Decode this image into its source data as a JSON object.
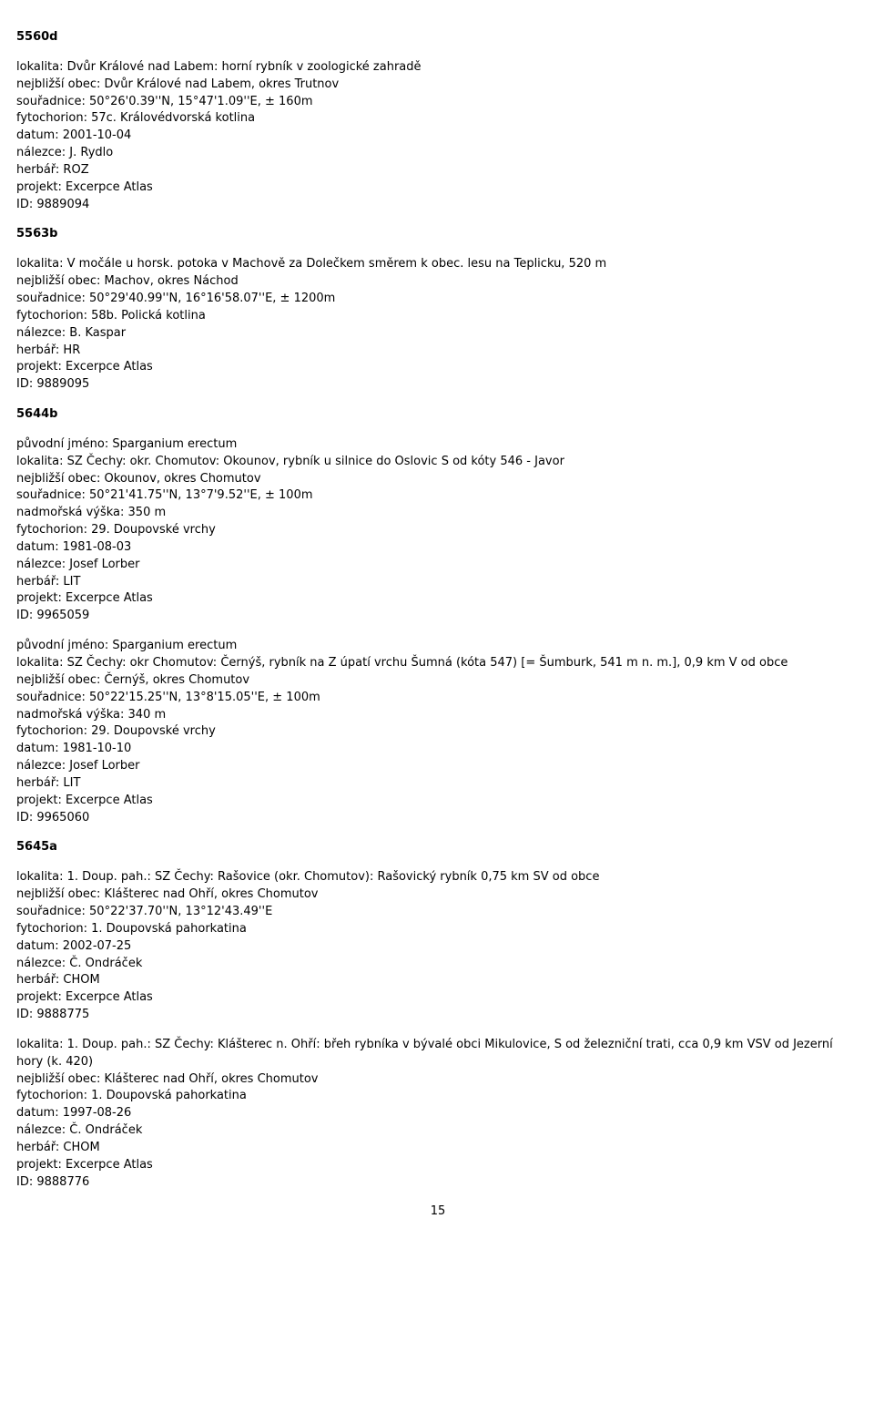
{
  "sections": [
    {
      "code": "5560d",
      "records": [
        {
          "lines": [
            "lokalita: Dvůr Králové nad Labem: horní rybník v zoologické zahradě",
            "nejbližší obec: Dvůr Králové nad Labem, okres Trutnov",
            "souřadnice: 50°26'0.39''N, 15°47'1.09''E, ± 160m",
            "fytochorion: 57c. Královédvorská kotlina",
            "datum: 2001-10-04",
            "nálezce: J. Rydlo",
            "herbář: ROZ",
            "projekt: Excerpce Atlas",
            "ID: 9889094"
          ]
        }
      ]
    },
    {
      "code": "5563b",
      "records": [
        {
          "lines": [
            "lokalita: V močále u horsk. potoka v Machově za Dolečkem směrem k obec. lesu na Teplicku, 520 m",
            "nejbližší obec: Machov, okres Náchod",
            "souřadnice: 50°29'40.99''N, 16°16'58.07''E, ± 1200m",
            "fytochorion: 58b. Polická kotlina",
            "nálezce: B. Kaspar",
            "herbář: HR",
            "projekt: Excerpce Atlas",
            "ID: 9889095"
          ]
        }
      ]
    },
    {
      "code": "5644b",
      "records": [
        {
          "lines": [
            "původní jméno: Sparganium erectum",
            "lokalita: SZ Čechy: okr. Chomutov: Okounov, rybník u silnice do Oslovic S od kóty 546 - Javor",
            "nejbližší obec: Okounov, okres Chomutov",
            "souřadnice: 50°21'41.75''N, 13°7'9.52''E, ± 100m",
            "nadmořská výška: 350 m",
            "fytochorion: 29. Doupovské vrchy",
            "datum: 1981-08-03",
            "nálezce: Josef Lorber",
            "herbář: LIT",
            "projekt: Excerpce Atlas",
            "ID: 9965059"
          ]
        },
        {
          "lines": [
            "původní jméno: Sparganium erectum",
            "lokalita: SZ Čechy: okr Chomutov: Černýš, rybník na Z úpatí vrchu Šumná (kóta 547) [= Šumburk, 541 m n. m.], 0,9 km V od obce",
            "nejbližší obec: Černýš, okres Chomutov",
            "souřadnice: 50°22'15.25''N, 13°8'15.05''E, ± 100m",
            "nadmořská výška: 340 m",
            "fytochorion: 29. Doupovské vrchy",
            "datum: 1981-10-10",
            "nálezce: Josef Lorber",
            "herbář: LIT",
            "projekt: Excerpce Atlas",
            "ID: 9965060"
          ]
        }
      ]
    },
    {
      "code": "5645a",
      "records": [
        {
          "lines": [
            "lokalita: 1. Doup. pah.: SZ Čechy: Rašovice (okr. Chomutov): Rašovický rybník 0,75 km SV od obce",
            "nejbližší obec: Klášterec nad Ohří, okres Chomutov",
            "souřadnice: 50°22'37.70''N, 13°12'43.49''E",
            "fytochorion: 1. Doupovská pahorkatina",
            "datum: 2002-07-25",
            "nálezce: Č. Ondráček",
            "herbář: CHOM",
            "projekt: Excerpce Atlas",
            "ID: 9888775"
          ]
        },
        {
          "lines": [
            "lokalita: 1. Doup. pah.: SZ Čechy: Klášterec n. Ohří: břeh rybníka v bývalé obci Mikulovice, S od železniční trati, cca 0,9 km VSV od Jezerní hory (k. 420)",
            "nejbližší obec: Klášterec nad Ohří, okres Chomutov",
            "fytochorion: 1. Doupovská pahorkatina",
            "datum: 1997-08-26",
            "nálezce: Č. Ondráček",
            "herbář: CHOM",
            "projekt: Excerpce Atlas",
            "ID: 9888776"
          ]
        }
      ]
    }
  ],
  "page_number": "15"
}
